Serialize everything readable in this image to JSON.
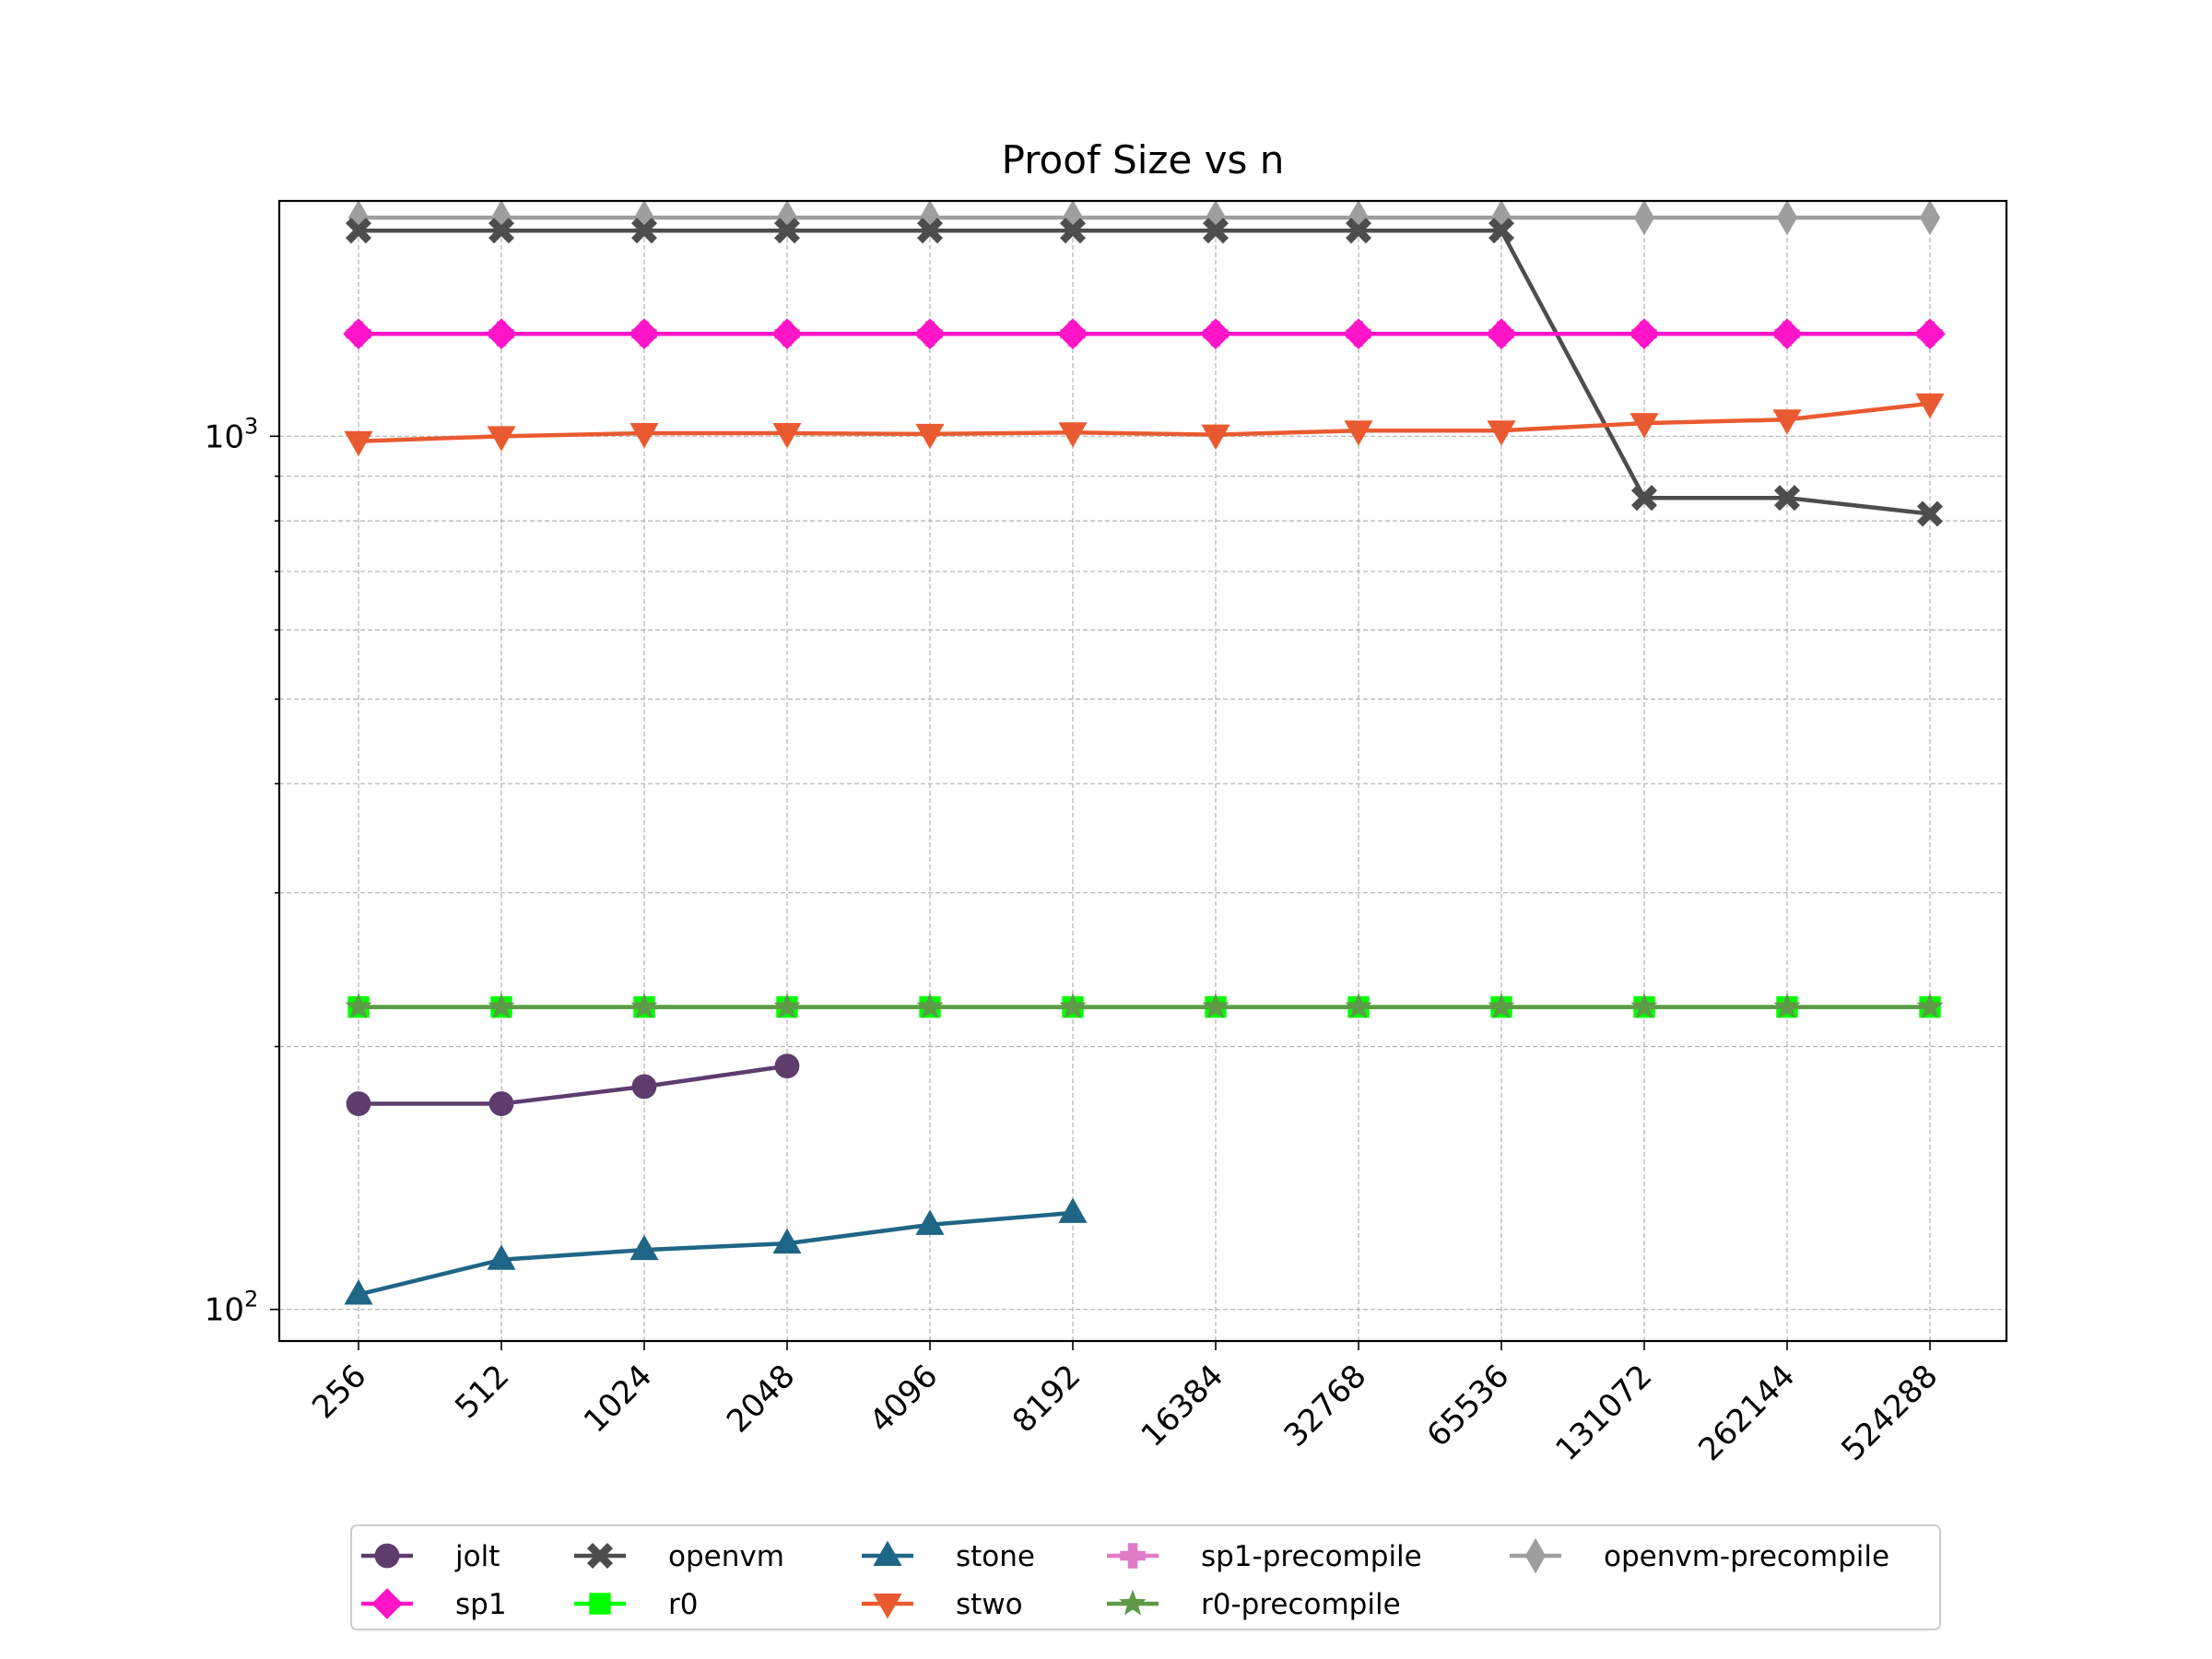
{
  "chart_data": {
    "type": "line",
    "title": "Proof Size vs n",
    "xlabel": "",
    "ylabel": "",
    "y_scale": "log",
    "ylim": [
      92,
      1860
    ],
    "grid": true,
    "legend_position": "bottom-center, outside plot",
    "categories": [
      "256",
      "512",
      "1024",
      "2048",
      "4096",
      "8192",
      "16384",
      "32768",
      "65536",
      "131072",
      "262144",
      "524288"
    ],
    "y_major_ticks": [
      {
        "value": 100,
        "base": "10",
        "exp": "2"
      },
      {
        "value": 1000,
        "base": "10",
        "exp": "3"
      }
    ],
    "series": [
      {
        "name": "jolt",
        "color": "#5e3c6e",
        "marker": "circle",
        "values": [
          172,
          172,
          180,
          190,
          null,
          null,
          null,
          null,
          null,
          null,
          null,
          null
        ]
      },
      {
        "name": "sp1",
        "color": "#ff14c8",
        "marker": "diamond",
        "values": [
          1310,
          1310,
          1310,
          1310,
          1310,
          1310,
          1310,
          1310,
          1310,
          1310,
          1310,
          1310
        ]
      },
      {
        "name": "openvm",
        "color": "#4d4d4d",
        "marker": "x-thick",
        "values": [
          1720,
          1720,
          1720,
          1720,
          1720,
          1720,
          1720,
          1720,
          1720,
          850,
          850,
          815
        ]
      },
      {
        "name": "r0",
        "color": "#00ff00",
        "marker": "square",
        "values": [
          222,
          222,
          222,
          222,
          222,
          222,
          222,
          222,
          222,
          222,
          222,
          222
        ]
      },
      {
        "name": "stone",
        "color": "#1f6585",
        "marker": "triangle-up",
        "values": [
          104,
          114,
          117,
          119,
          125,
          129,
          null,
          null,
          null,
          null,
          null,
          null
        ]
      },
      {
        "name": "stwo",
        "color": "#ea5a30",
        "marker": "triangle-down",
        "values": [
          987,
          1000,
          1008,
          1008,
          1006,
          1010,
          1004,
          1015,
          1015,
          1035,
          1045,
          1090
        ]
      },
      {
        "name": "sp1-precompile",
        "color": "#e07bc8",
        "marker": "plus-thick",
        "values": [
          1310,
          1310,
          1310,
          1310,
          1310,
          1310,
          1310,
          1310,
          1310,
          1310,
          1310,
          1310
        ]
      },
      {
        "name": "r0-precompile",
        "color": "#5e9a48",
        "marker": "star",
        "values": [
          222,
          222,
          222,
          222,
          222,
          222,
          222,
          222,
          222,
          222,
          222,
          222
        ]
      },
      {
        "name": "openvm-precompile",
        "color": "#9e9e9e",
        "marker": "thin-diamond",
        "values": [
          1780,
          1780,
          1780,
          1780,
          1780,
          1780,
          1780,
          1780,
          1780,
          1780,
          1780,
          1780
        ]
      }
    ],
    "draw_order": [
      "openvm-precompile",
      "openvm",
      "sp1-precompile",
      "sp1",
      "stwo",
      "r0",
      "r0-precompile",
      "jolt",
      "stone"
    ]
  }
}
